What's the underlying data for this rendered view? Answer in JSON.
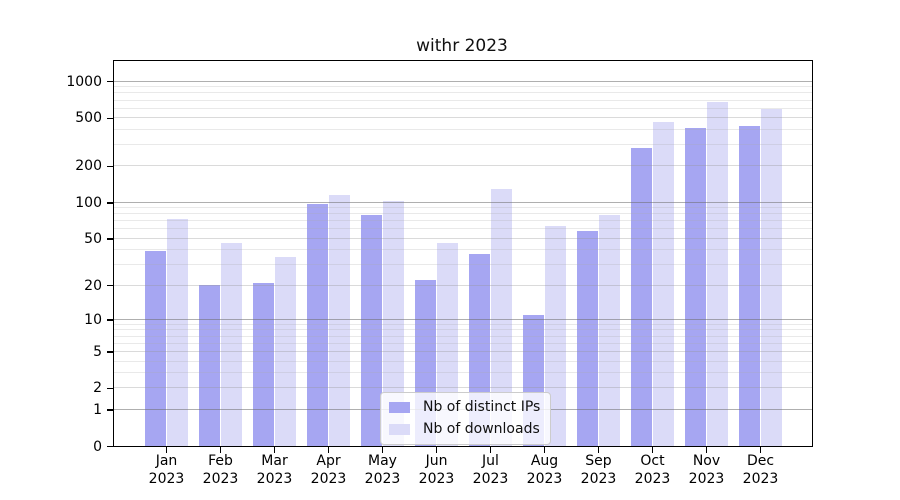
{
  "chart_data": {
    "type": "bar",
    "title": "withr 2023",
    "categories": [
      "Jan",
      "Feb",
      "Mar",
      "Apr",
      "May",
      "Jun",
      "Jul",
      "Aug",
      "Sep",
      "Oct",
      "Nov",
      "Dec"
    ],
    "year_label": "2023",
    "series": [
      {
        "name": "Nb of distinct IPs",
        "color": "#a6a6f2",
        "values": [
          39,
          20,
          21,
          96,
          78,
          22,
          37,
          11,
          58,
          280,
          415,
          425
        ]
      },
      {
        "name": "Nb of downloads",
        "color": "#dbdbf8",
        "values": [
          72,
          46,
          35,
          114,
          102,
          46,
          128,
          63,
          78,
          465,
          680,
          595
        ]
      }
    ],
    "y_axis": {
      "scale": "log1p",
      "ticks": [
        0,
        1,
        2,
        5,
        10,
        20,
        50,
        100,
        200,
        500,
        1000
      ],
      "tick_labels": [
        "0",
        "1",
        "2",
        "5",
        "10",
        "20",
        "50",
        "100",
        "200",
        "500",
        "1000"
      ],
      "minor_ticks": [
        3,
        4,
        6,
        7,
        8,
        9,
        30,
        40,
        60,
        70,
        80,
        90,
        300,
        400,
        600,
        700,
        800,
        900
      ],
      "ylim": [
        0,
        1400
      ]
    },
    "xlabel": "",
    "ylabel": "",
    "grid": true,
    "legend_position": "lower center"
  }
}
